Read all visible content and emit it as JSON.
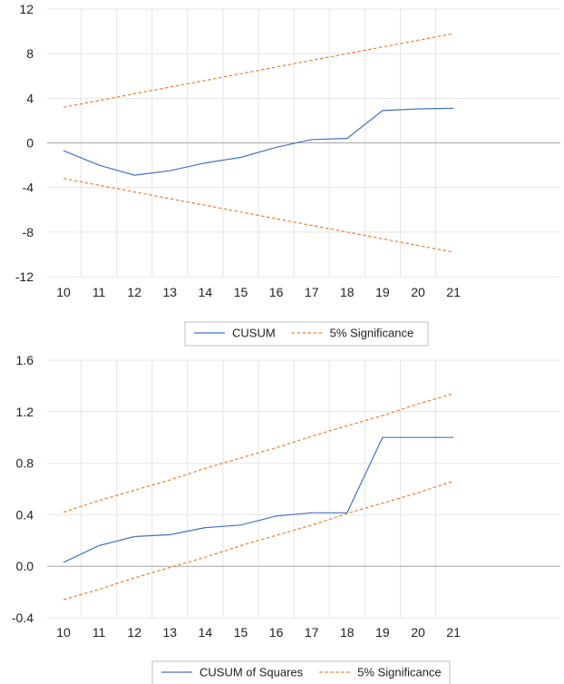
{
  "chart_data": [
    {
      "type": "line",
      "x": [
        10,
        11,
        12,
        13,
        14,
        15,
        16,
        17,
        18,
        19,
        20,
        21
      ],
      "ylim": [
        -12,
        12
      ],
      "yticks": [
        "12",
        "8",
        "4",
        "0",
        "-4",
        "-8",
        "-12"
      ],
      "ytick_values": [
        12,
        8,
        4,
        0,
        -4,
        -8,
        -12
      ],
      "xticks": [
        "10",
        "11",
        "12",
        "13",
        "14",
        "15",
        "16",
        "17",
        "18",
        "19",
        "20",
        "21"
      ],
      "grid": true,
      "legend_position": "bottom",
      "series": [
        {
          "name": "CUSUM",
          "color": "#4472c4",
          "dash": false,
          "values": [
            -0.7,
            -2.0,
            -2.9,
            -2.5,
            -1.8,
            -1.3,
            -0.4,
            0.3,
            0.4,
            2.9,
            3.05,
            3.1
          ]
        },
        {
          "name": "5% Significance",
          "color": "#ed7d31",
          "dash": true,
          "values": [
            3.2,
            3.8,
            4.4,
            5.0,
            5.6,
            6.2,
            6.8,
            7.4,
            8.0,
            8.6,
            9.2,
            9.8
          ]
        },
        {
          "name": "",
          "color": "#ed7d31",
          "dash": true,
          "values": [
            -3.2,
            -3.8,
            -4.4,
            -5.0,
            -5.6,
            -6.2,
            -6.8,
            -7.4,
            -8.0,
            -8.6,
            -9.2,
            -9.8
          ]
        }
      ],
      "legend": [
        "CUSUM",
        "5% Significance"
      ]
    },
    {
      "type": "line",
      "x": [
        10,
        11,
        12,
        13,
        14,
        15,
        16,
        17,
        18,
        19,
        20,
        21
      ],
      "ylim": [
        -0.4,
        1.6
      ],
      "yticks": [
        "1.6",
        "1.2",
        "0.8",
        "0.4",
        "0.0",
        "-0.4"
      ],
      "ytick_values": [
        1.6,
        1.2,
        0.8,
        0.4,
        0.0,
        -0.4
      ],
      "xticks": [
        "10",
        "11",
        "12",
        "13",
        "14",
        "15",
        "16",
        "17",
        "18",
        "19",
        "20",
        "21"
      ],
      "grid": true,
      "legend_position": "bottom",
      "series": [
        {
          "name": "CUSUM of Squares",
          "color": "#4472c4",
          "dash": false,
          "values": [
            0.03,
            0.16,
            0.23,
            0.245,
            0.3,
            0.32,
            0.39,
            0.415,
            0.415,
            1.0,
            1.0,
            1.0
          ]
        },
        {
          "name": "5% Significance",
          "color": "#ed7d31",
          "dash": true,
          "values": [
            0.42,
            0.51,
            0.59,
            0.67,
            0.76,
            0.84,
            0.92,
            1.01,
            1.09,
            1.17,
            1.26,
            1.34
          ]
        },
        {
          "name": "",
          "color": "#ed7d31",
          "dash": true,
          "values": [
            -0.26,
            -0.18,
            -0.09,
            -0.01,
            0.07,
            0.16,
            0.24,
            0.32,
            0.41,
            0.49,
            0.57,
            0.66
          ]
        }
      ],
      "legend": [
        "CUSUM of Squares",
        "5% Significance"
      ]
    }
  ]
}
